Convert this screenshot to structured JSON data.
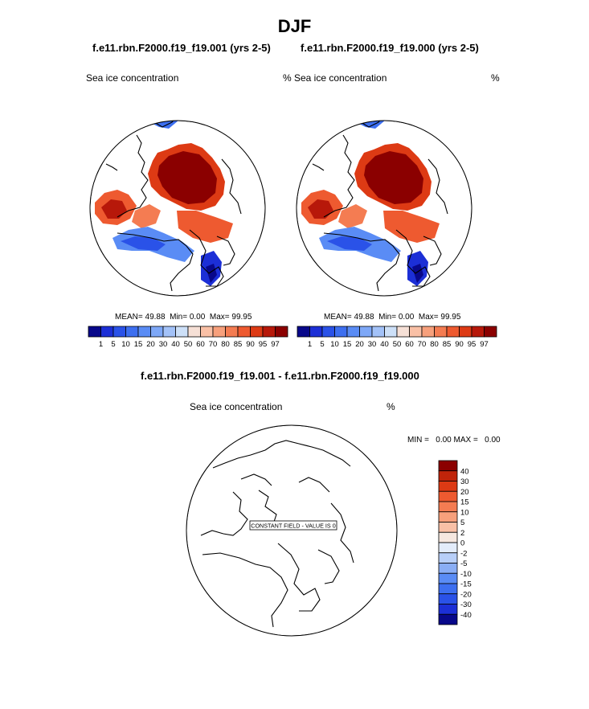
{
  "chart_data": [
    {
      "type": "heatmap",
      "projection": "north-polar-stereographic",
      "title": "f.e11.rbn.F2000.f19_f19.001 (yrs 2-5)",
      "variable": "Sea ice concentration",
      "units": "%",
      "stats": {
        "mean_label": "MEAN=",
        "mean": "49.88",
        "min_label": "Min=",
        "min": "0.00",
        "max_label": "Max=",
        "max": "99.95"
      },
      "colorbar_levels": [
        "1",
        "5",
        "10",
        "15",
        "20",
        "30",
        "40",
        "50",
        "60",
        "70",
        "80",
        "85",
        "90",
        "95",
        "97"
      ],
      "colorbar_colors": [
        "#08088a",
        "#1c2fd6",
        "#2a52e8",
        "#3d6ff0",
        "#5a8cf5",
        "#7ea8f7",
        "#a3c2f8",
        "#cde0f8",
        "#f6e0d6",
        "#f9c0a6",
        "#f7a07c",
        "#f47c52",
        "#ee5a30",
        "#dd3a14",
        "#b7180a",
        "#8b0000"
      ]
    },
    {
      "type": "heatmap",
      "projection": "north-polar-stereographic",
      "title": "f.e11.rbn.F2000.f19_f19.000 (yrs 2-5)",
      "variable": "Sea ice concentration",
      "units": "%",
      "stats": {
        "mean_label": "MEAN=",
        "mean": "49.88",
        "min_label": "Min=",
        "min": "0.00",
        "max_label": "Max=",
        "max": "99.95"
      },
      "colorbar_levels": [
        "1",
        "5",
        "10",
        "15",
        "20",
        "30",
        "40",
        "50",
        "60",
        "70",
        "80",
        "85",
        "90",
        "95",
        "97"
      ],
      "colorbar_colors": [
        "#08088a",
        "#1c2fd6",
        "#2a52e8",
        "#3d6ff0",
        "#5a8cf5",
        "#7ea8f7",
        "#a3c2f8",
        "#cde0f8",
        "#f6e0d6",
        "#f9c0a6",
        "#f7a07c",
        "#f47c52",
        "#ee5a30",
        "#dd3a14",
        "#b7180a",
        "#8b0000"
      ]
    },
    {
      "type": "heatmap",
      "projection": "north-polar-stereographic",
      "title": "f.e11.rbn.F2000.f19_f19.001 - f.e11.rbn.F2000.f19_f19.000",
      "variable": "Sea ice concentration",
      "units": "%",
      "stats_text": "MIN =   0.00 MAX =   0.00",
      "annotation": "CONSTANT FIELD - VALUE IS 0",
      "colorbar_levels": [
        "40",
        "30",
        "20",
        "15",
        "10",
        "5",
        "2",
        "0",
        "-2",
        "-5",
        "-10",
        "-15",
        "-20",
        "-30",
        "-40"
      ],
      "colorbar_colors": [
        "#8b0000",
        "#c0240a",
        "#dd3a14",
        "#ee5a30",
        "#f47c52",
        "#f7a07c",
        "#f9c0a6",
        "#f6e8e0",
        "#e3ecfa",
        "#b8cff8",
        "#8aaef5",
        "#5a8cf5",
        "#3d6ff0",
        "#2a52e8",
        "#1c2fd6",
        "#08088a"
      ]
    }
  ],
  "page_title": "DJF"
}
